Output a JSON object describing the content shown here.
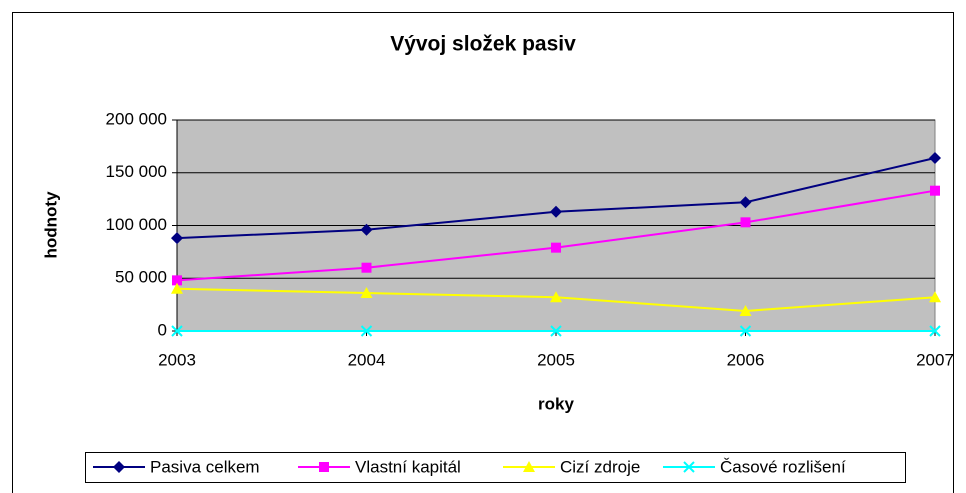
{
  "chart_data": {
    "type": "line",
    "title": "Vývoj složek pasiv",
    "xlabel": "roky",
    "ylabel": "hodnoty",
    "categories": [
      "2003",
      "2004",
      "2005",
      "2006",
      "2007"
    ],
    "series": [
      {
        "name": "Pasiva celkem",
        "color": "#000080",
        "marker": "diamond",
        "values": [
          88000,
          96000,
          113000,
          122000,
          164000
        ]
      },
      {
        "name": "Vlastní kapitál",
        "color": "#ff00ff",
        "marker": "square",
        "values": [
          48000,
          60000,
          79000,
          103000,
          133000
        ]
      },
      {
        "name": "Cizí zdroje",
        "color": "#ffff00",
        "marker": "triangle",
        "values": [
          40000,
          36000,
          32000,
          19000,
          32000
        ]
      },
      {
        "name": "Časové rozlišení",
        "color": "#00ffff",
        "marker": "x",
        "values": [
          0,
          0,
          0,
          0,
          0
        ]
      }
    ],
    "ylim": [
      0,
      200000
    ],
    "yticks": [
      0,
      {
        "value": 50000,
        "label": "50 000"
      },
      {
        "value": 100000,
        "label": "100 000"
      },
      {
        "value": 150000,
        "label": "150 000"
      },
      {
        "value": 200000,
        "label": "200 000"
      }
    ],
    "grid": true,
    "legend": "bottom"
  }
}
